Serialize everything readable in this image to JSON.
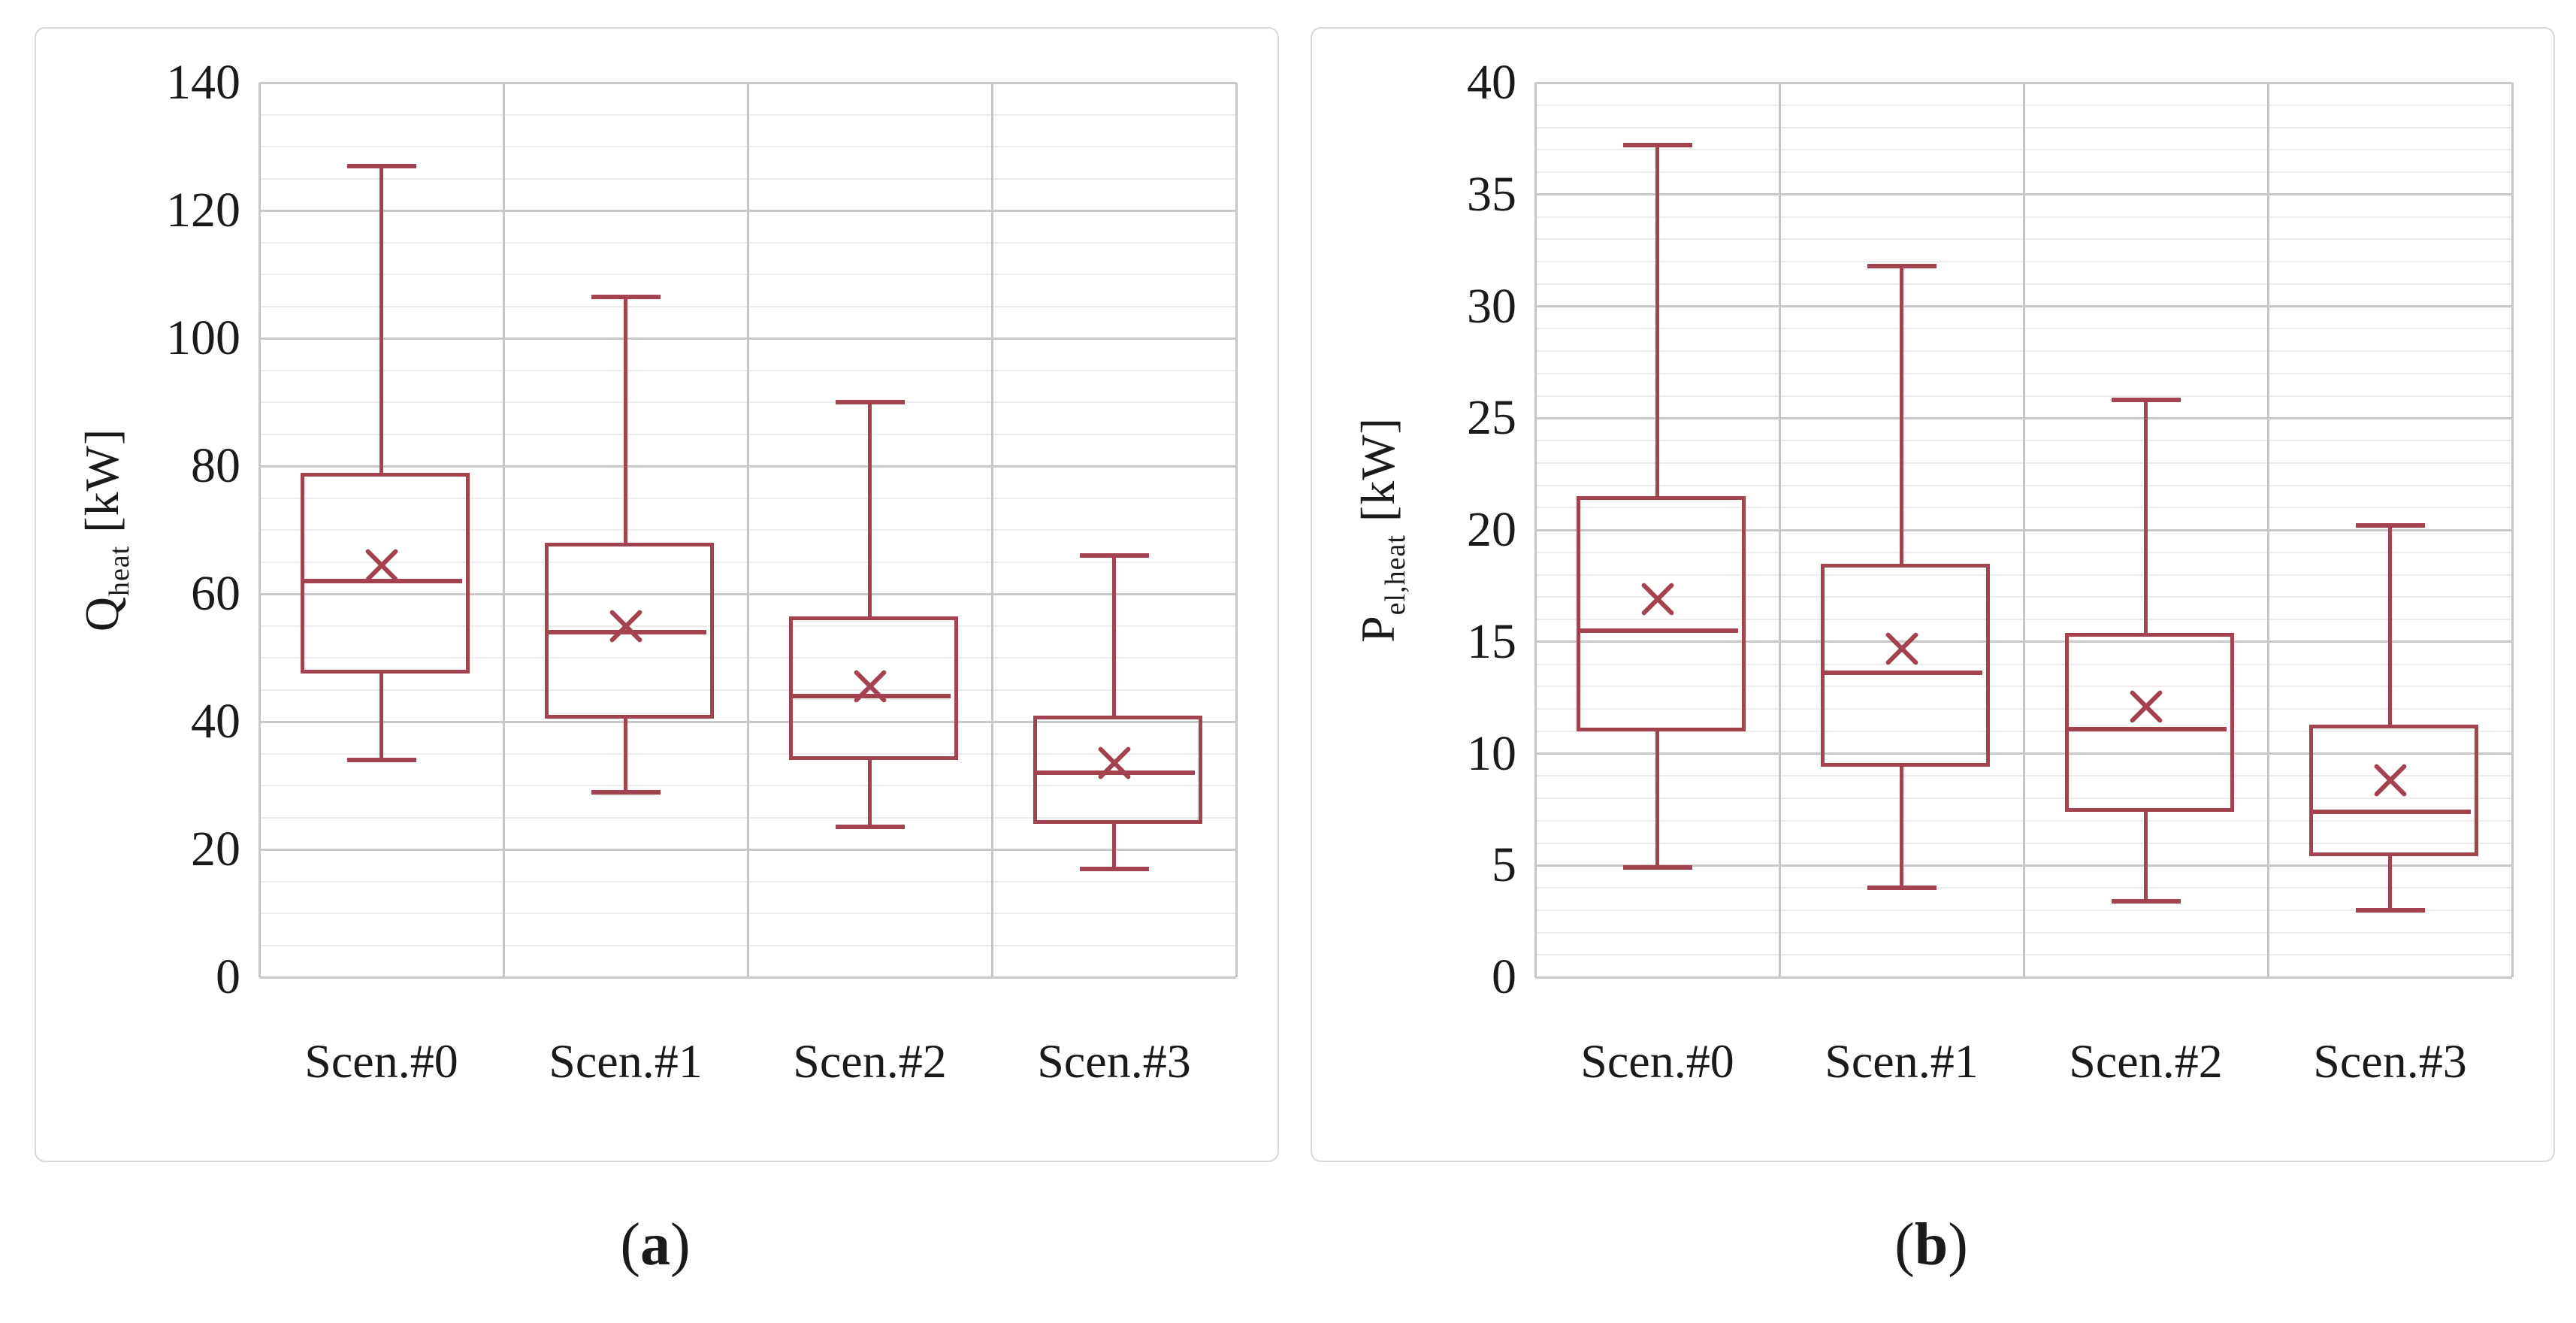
{
  "figure": {
    "panels": [
      {
        "caption_open": "(",
        "caption_letter": "a",
        "caption_close": ")",
        "y_axis_title": {
          "main": "Q",
          "sub": "heat",
          "unit": " [kW]"
        },
        "y_tick_labels": [
          "0",
          "20",
          "40",
          "60",
          "80",
          "100",
          "120",
          "140"
        ]
      },
      {
        "caption_open": "(",
        "caption_letter": "b",
        "caption_close": ")",
        "y_axis_title": {
          "main": "P",
          "sub": "el,heat",
          "unit": " [kW]"
        },
        "y_tick_labels": [
          "0",
          "5",
          "10",
          "15",
          "20",
          "25",
          "30",
          "35",
          "40"
        ]
      }
    ]
  },
  "colors": {
    "box_line": "#A4434F",
    "grid_minor": "#ECECEC",
    "grid_major": "#C9C9C9",
    "grid_vertical": "#C6C6C6",
    "panel_border": "#D8D8D8",
    "text": "#1A1A1A"
  },
  "chart_data": [
    {
      "type": "boxplot",
      "title": "",
      "xlabel": "",
      "ylabel": "Q_heat [kW]",
      "categories": [
        "Scen.#0",
        "Scen.#1",
        "Scen.#2",
        "Scen.#3"
      ],
      "ylim": [
        0,
        140
      ],
      "major_step": 20,
      "minor_step": 5,
      "grid": "horizontal major+minor, vertical category boundaries",
      "legend_position": "none",
      "series": [
        {
          "name": "Scen.#0",
          "min": 34,
          "q1": 47.5,
          "median": 62,
          "mean": 64.5,
          "q3": 79,
          "max": 127
        },
        {
          "name": "Scen.#1",
          "min": 29,
          "q1": 40.5,
          "median": 54,
          "mean": 55,
          "q3": 68,
          "max": 106.5
        },
        {
          "name": "Scen.#2",
          "min": 23.5,
          "q1": 34,
          "median": 44,
          "mean": 45.5,
          "q3": 56.5,
          "max": 90
        },
        {
          "name": "Scen.#3",
          "min": 17,
          "q1": 24,
          "median": 32,
          "mean": 33.5,
          "q3": 41,
          "max": 66
        }
      ]
    },
    {
      "type": "boxplot",
      "title": "",
      "xlabel": "",
      "ylabel": "P_el,heat [kW]",
      "categories": [
        "Scen.#0",
        "Scen.#1",
        "Scen.#2",
        "Scen.#3"
      ],
      "ylim": [
        0,
        40
      ],
      "major_step": 5,
      "minor_step": 1,
      "grid": "horizontal major+minor, vertical category boundaries",
      "legend_position": "none",
      "series": [
        {
          "name": "Scen.#0",
          "min": 4.9,
          "q1": 11,
          "median": 15.5,
          "mean": 16.9,
          "q3": 21.5,
          "max": 37.2
        },
        {
          "name": "Scen.#1",
          "min": 4,
          "q1": 9.4,
          "median": 13.6,
          "mean": 14.7,
          "q3": 18.5,
          "max": 31.8
        },
        {
          "name": "Scen.#2",
          "min": 3.4,
          "q1": 7.4,
          "median": 11.1,
          "mean": 12.1,
          "q3": 15.4,
          "max": 25.8
        },
        {
          "name": "Scen.#3",
          "min": 3,
          "q1": 5.4,
          "median": 7.4,
          "mean": 8.8,
          "q3": 11.3,
          "max": 20.2
        }
      ]
    }
  ]
}
